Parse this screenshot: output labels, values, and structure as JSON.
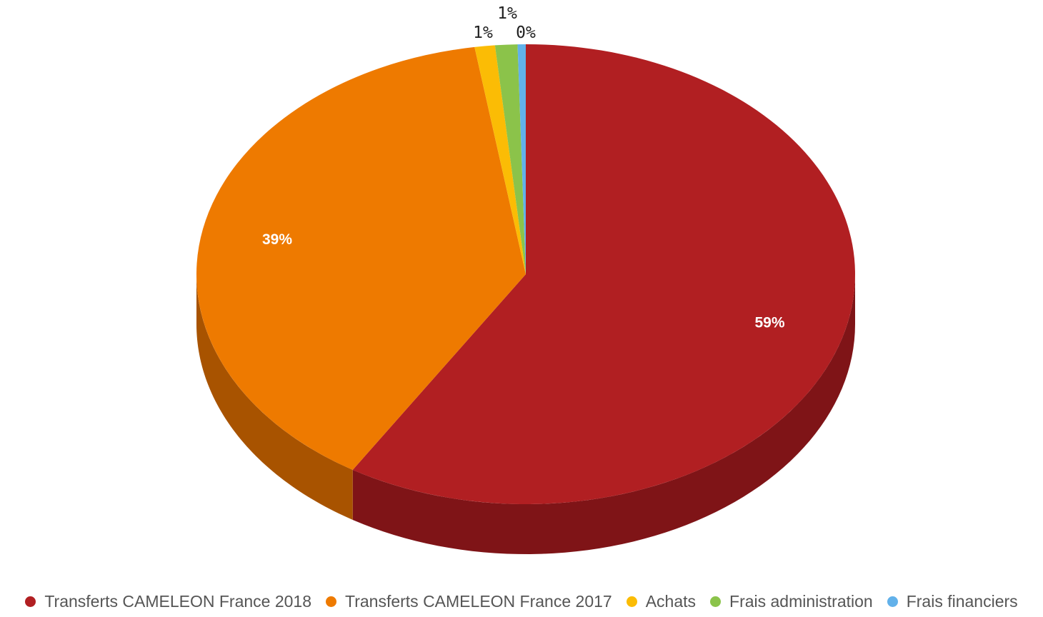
{
  "chart_data": {
    "type": "pie",
    "categories": [
      "Transferts CAMELEON France 2018",
      "Transferts CAMELEON France 2017",
      "Achats",
      "Frais administration",
      "Frais financiers"
    ],
    "values": [
      59.1,
      38.9,
      1.0,
      1.1,
      0.4
    ],
    "labels": [
      "59%",
      "39%",
      "1%",
      "1%",
      "0%"
    ],
    "colors": [
      "#b11f22",
      "#ee7a00",
      "#fbbc05",
      "#8bc34a",
      "#62b1ea"
    ],
    "side_colors": [
      "#7f1417",
      "#a85300",
      "#b08503",
      "#618734",
      "#427fa6"
    ],
    "style": "3d",
    "legend_position": "bottom"
  }
}
